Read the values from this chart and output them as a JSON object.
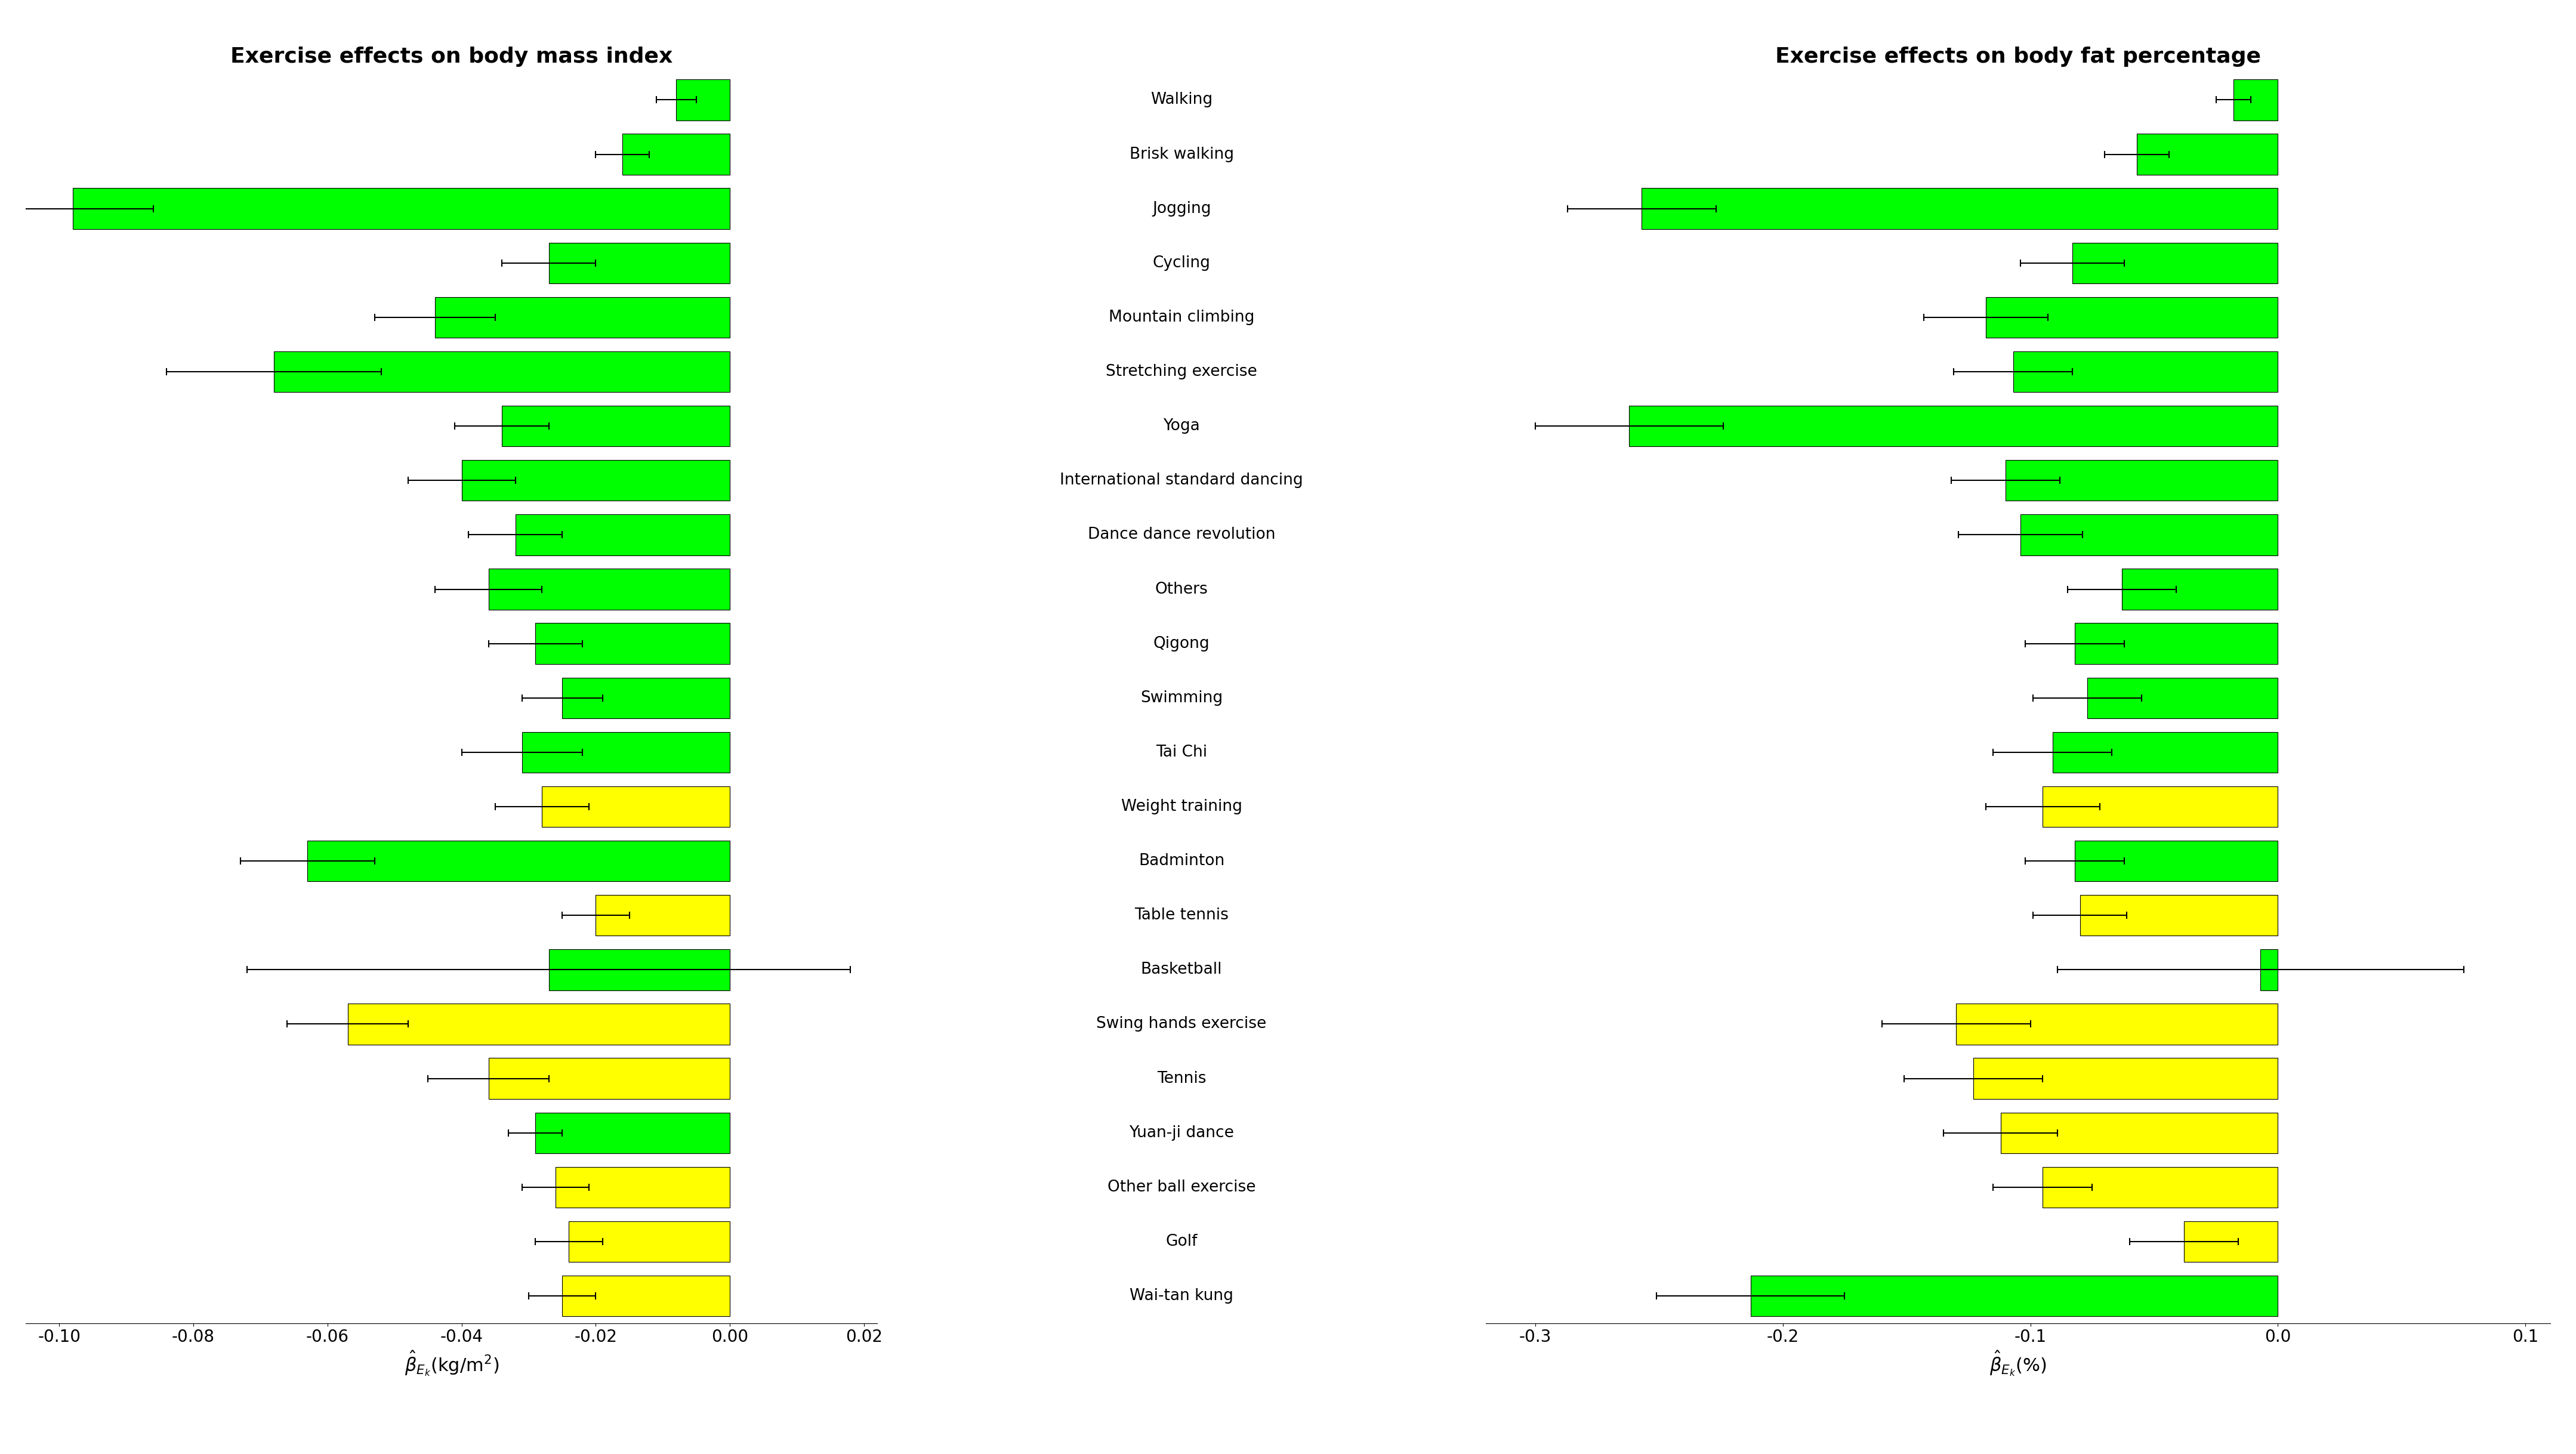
{
  "left_title": "Exercise effects on body mass index",
  "right_title": "Exercise effects on body fat percentage",
  "left_xlabel": "$\\hat{\\beta}_{E_k}$(kg/m$^2$)",
  "right_xlabel": "$\\hat{\\beta}_{E_k}$(%)",
  "left_xlim": [
    -0.105,
    0.022
  ],
  "right_xlim": [
    -0.32,
    0.11
  ],
  "left_xticks": [
    -0.1,
    -0.08,
    -0.06,
    -0.04,
    -0.02,
    0.0,
    0.02
  ],
  "right_xticks": [
    -0.3,
    -0.2,
    -0.1,
    0.0,
    0.1
  ],
  "labels": [
    "Walking",
    "Brisk walking",
    "Jogging",
    "Cycling",
    "Mountain climbing",
    "Stretching exercise",
    "Yoga",
    "International standard dancing",
    "Dance dance revolution",
    "Others",
    "Qigong",
    "Swimming",
    "Tai Chi",
    "Weight training",
    "Badminton",
    "Table tennis",
    "Basketball",
    "Swing hands exercise",
    "Tennis",
    "Yuan-ji dance",
    "Other ball exercise",
    "Golf",
    "Wai-tan kung"
  ],
  "bmi_values": [
    -0.008,
    -0.016,
    -0.098,
    -0.027,
    -0.044,
    -0.068,
    -0.034,
    -0.04,
    -0.032,
    -0.036,
    -0.029,
    -0.025,
    -0.031,
    -0.028,
    -0.063,
    -0.02,
    -0.027,
    -0.057,
    -0.036,
    -0.029,
    -0.026,
    -0.024,
    -0.025
  ],
  "bmi_err_low": [
    0.003,
    0.004,
    0.012,
    0.007,
    0.009,
    0.016,
    0.007,
    0.008,
    0.007,
    0.008,
    0.007,
    0.006,
    0.009,
    0.007,
    0.01,
    0.005,
    0.045,
    0.009,
    0.009,
    0.004,
    0.005,
    0.005,
    0.005
  ],
  "bmi_err_high": [
    0.003,
    0.004,
    0.012,
    0.007,
    0.009,
    0.016,
    0.007,
    0.008,
    0.007,
    0.008,
    0.007,
    0.006,
    0.009,
    0.007,
    0.01,
    0.005,
    0.045,
    0.009,
    0.009,
    0.004,
    0.005,
    0.005,
    0.005
  ],
  "bmi_colors": [
    "green",
    "green",
    "green",
    "green",
    "green",
    "green",
    "green",
    "green",
    "green",
    "green",
    "green",
    "green",
    "green",
    "yellow",
    "green",
    "yellow",
    "green",
    "yellow",
    "yellow",
    "green",
    "yellow",
    "yellow",
    "yellow"
  ],
  "bfp_values": [
    -0.018,
    -0.057,
    -0.257,
    -0.083,
    -0.118,
    -0.107,
    -0.262,
    -0.11,
    -0.104,
    -0.063,
    -0.082,
    -0.077,
    -0.091,
    -0.095,
    -0.082,
    -0.08,
    -0.007,
    -0.13,
    -0.123,
    -0.112,
    -0.095,
    -0.038,
    -0.213
  ],
  "bfp_err_low": [
    0.007,
    0.013,
    0.03,
    0.021,
    0.025,
    0.024,
    0.038,
    0.022,
    0.025,
    0.022,
    0.02,
    0.022,
    0.024,
    0.023,
    0.02,
    0.019,
    0.082,
    0.03,
    0.028,
    0.023,
    0.02,
    0.022,
    0.038
  ],
  "bfp_err_high": [
    0.007,
    0.013,
    0.03,
    0.021,
    0.025,
    0.024,
    0.038,
    0.022,
    0.025,
    0.022,
    0.02,
    0.022,
    0.024,
    0.023,
    0.02,
    0.019,
    0.082,
    0.03,
    0.028,
    0.023,
    0.02,
    0.022,
    0.038
  ],
  "bfp_colors": [
    "green",
    "green",
    "green",
    "green",
    "green",
    "green",
    "green",
    "green",
    "green",
    "green",
    "green",
    "green",
    "green",
    "yellow",
    "green",
    "yellow",
    "green",
    "yellow",
    "yellow",
    "yellow",
    "yellow",
    "yellow",
    "green"
  ],
  "green": "#00FF00",
  "yellow": "#FFFF00",
  "bar_edgecolor": "black",
  "bar_linewidth": 0.8,
  "bar_height": 0.75,
  "fontsize_title": 26,
  "fontsize_tick": 20,
  "fontsize_label": 22,
  "fontsize_ylabel": 19,
  "capsize": 4,
  "elinewidth": 1.5,
  "ecapthick": 1.5
}
